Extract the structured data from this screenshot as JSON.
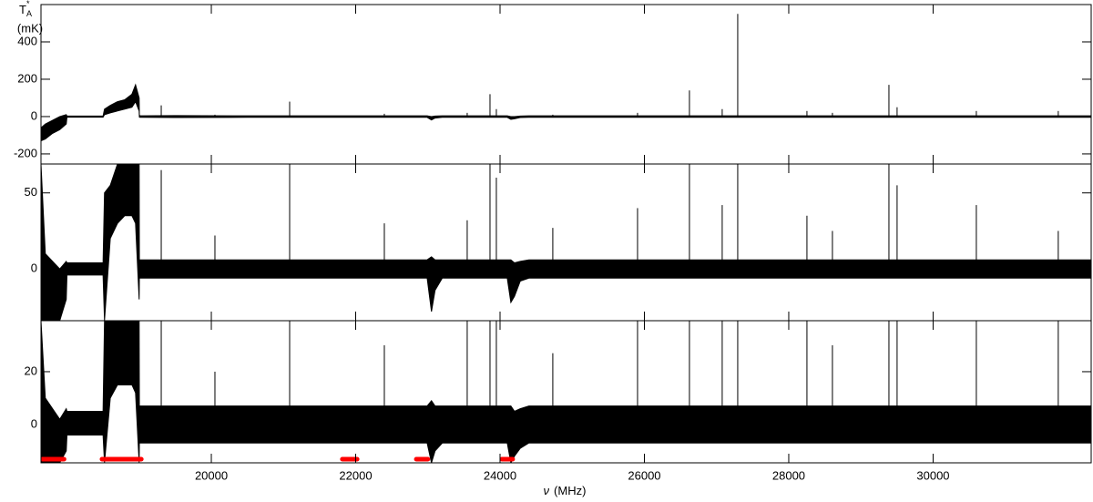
{
  "chart_data": [
    {
      "type": "band-spectrum",
      "y_label": {
        "symbol": "T",
        "sup": "*",
        "sub": "A",
        "unit": "(mK)"
      },
      "xlim": [
        17640,
        32190
      ],
      "ylim": [
        -254,
        600
      ],
      "yticks": [
        -200,
        0,
        200,
        400
      ],
      "color": "#000000",
      "x": [
        17640,
        17700,
        17800,
        17900,
        17990,
        18000,
        18500,
        18520,
        18600,
        18700,
        18800,
        18900,
        18950,
        19000,
        19003,
        19010,
        19500,
        20500,
        21500,
        22500,
        22990,
        23050,
        23100,
        23200,
        24100,
        24150,
        24200,
        24280,
        24400,
        25500,
        26500,
        27500,
        28500,
        29500,
        30500,
        31500,
        32190
      ],
      "upper": [
        -60,
        -40,
        -20,
        0,
        10,
        3,
        3,
        40,
        60,
        80,
        90,
        120,
        170,
        100,
        10,
        4,
        5,
        4,
        4,
        4,
        4,
        0,
        3,
        4,
        4,
        0,
        0,
        3,
        4,
        4,
        4,
        4,
        4,
        4,
        4,
        4,
        4
      ],
      "lower": [
        -130,
        -120,
        -90,
        -70,
        -40,
        -3,
        -3,
        10,
        20,
        30,
        40,
        50,
        80,
        30,
        -3,
        -4,
        -5,
        -4,
        -4,
        -4,
        -4,
        -18,
        -8,
        -4,
        -4,
        -15,
        -12,
        -5,
        -4,
        -4,
        -4,
        -4,
        -4,
        -4,
        -4,
        -4,
        -4
      ],
      "spikes": {
        "x": [
          19306,
          20050,
          21085,
          22397,
          23545,
          23861,
          23949,
          24731,
          25905,
          26624,
          27078,
          27293,
          28252,
          28605,
          29388,
          29501,
          30599,
          31734
        ],
        "values": [
          60,
          10,
          80,
          15,
          20,
          120,
          40,
          10,
          20,
          140,
          40,
          550,
          30,
          20,
          170,
          50,
          30,
          30
        ]
      }
    },
    {
      "type": "band-spectrum",
      "xlim": [
        17640,
        32190
      ],
      "ylim": [
        -34,
        69
      ],
      "yticks": [
        0,
        50
      ],
      "color": "#000000",
      "x": [
        17640,
        17700,
        17800,
        17900,
        17990,
        18000,
        18500,
        18520,
        18600,
        18700,
        18800,
        18900,
        18950,
        19000,
        19003,
        19010,
        19500,
        20500,
        21500,
        22500,
        22990,
        23050,
        23100,
        23200,
        24100,
        24150,
        24200,
        24280,
        24400,
        25500,
        26500,
        27500,
        28500,
        29500,
        30500,
        31500,
        32190
      ],
      "upper": [
        69,
        10,
        5,
        0,
        5,
        4,
        4,
        50,
        55,
        69,
        69,
        69,
        69,
        69,
        6,
        6,
        6,
        6,
        6,
        6,
        6,
        8,
        6,
        6,
        6,
        6,
        4,
        5,
        6,
        6,
        6,
        6,
        6,
        6,
        6,
        6,
        6
      ],
      "lower": [
        -34,
        -34,
        -34,
        -34,
        -20,
        -4,
        -4,
        -34,
        20,
        30,
        35,
        35,
        30,
        -20,
        -6,
        -6,
        -6,
        -6,
        -6,
        -6,
        -6,
        -28,
        -14,
        -6,
        -6,
        -22,
        -18,
        -8,
        -6,
        -6,
        -6,
        -6,
        -6,
        -6,
        -6,
        -6,
        -6
      ],
      "spikes": {
        "x": [
          19306,
          20050,
          21085,
          22397,
          23545,
          23861,
          23949,
          24731,
          25905,
          26624,
          27078,
          27293,
          28252,
          28605,
          29388,
          29501,
          30599,
          31734
        ],
        "values": [
          65,
          22,
          69,
          30,
          32,
          69,
          60,
          27,
          40,
          69,
          42,
          69,
          35,
          25,
          69,
          55,
          42,
          25
        ]
      }
    },
    {
      "type": "band-spectrum",
      "x_label": {
        "symbol": "ν",
        "unit": "(MHz)"
      },
      "xlim": [
        17640,
        32190
      ],
      "ylim": [
        -14.5,
        39.3
      ],
      "yticks": [
        0,
        20
      ],
      "xticks": [
        20000,
        22000,
        24000,
        26000,
        28000,
        30000
      ],
      "color": "#000000",
      "x": [
        17640,
        17700,
        17800,
        17900,
        17990,
        18000,
        18500,
        18520,
        18600,
        18700,
        18800,
        18900,
        18950,
        19000,
        19003,
        19010,
        19500,
        20500,
        21500,
        22500,
        22990,
        23050,
        23100,
        23200,
        24100,
        24150,
        24200,
        24280,
        24400,
        25500,
        26500,
        27500,
        28500,
        29500,
        30500,
        31500,
        32190
      ],
      "upper": [
        39.3,
        10,
        6,
        2,
        6,
        5,
        5,
        39.3,
        39.3,
        39.3,
        39.3,
        39.3,
        39.3,
        39.3,
        7,
        7,
        7,
        7,
        7,
        7,
        7,
        9,
        7,
        7,
        7,
        7,
        5,
        6,
        7,
        7,
        7,
        7,
        7,
        7,
        7,
        7,
        7
      ],
      "lower": [
        -14.5,
        -14.5,
        -14.5,
        -14.5,
        -10,
        -4,
        -4,
        -14.5,
        10,
        15,
        15,
        15,
        12,
        -14.5,
        -7,
        -7,
        -7,
        -7,
        -7,
        -7,
        -7,
        -14.5,
        -10,
        -7,
        -7,
        -14.5,
        -12,
        -9,
        -7,
        -7,
        -7,
        -7,
        -7,
        -7,
        -7,
        -7,
        -7
      ],
      "spikes": {
        "x": [
          19306,
          20050,
          21085,
          22397,
          23545,
          23861,
          23949,
          24731,
          25905,
          26624,
          27078,
          27293,
          28252,
          28605,
          29388,
          29501,
          30599,
          31734
        ],
        "values": [
          39.3,
          20,
          39.3,
          30,
          39.3,
          39.3,
          39.3,
          27,
          39.3,
          39.3,
          39.3,
          39.3,
          39.3,
          30,
          39.3,
          39.3,
          39.3,
          39.3
        ]
      },
      "flag_color": "#ff0000",
      "flagged_ranges": [
        [
          17660,
          17960
        ],
        [
          18485,
          19030
        ],
        [
          21815,
          22020
        ],
        [
          22840,
          23000
        ],
        [
          24025,
          24175
        ]
      ]
    }
  ]
}
